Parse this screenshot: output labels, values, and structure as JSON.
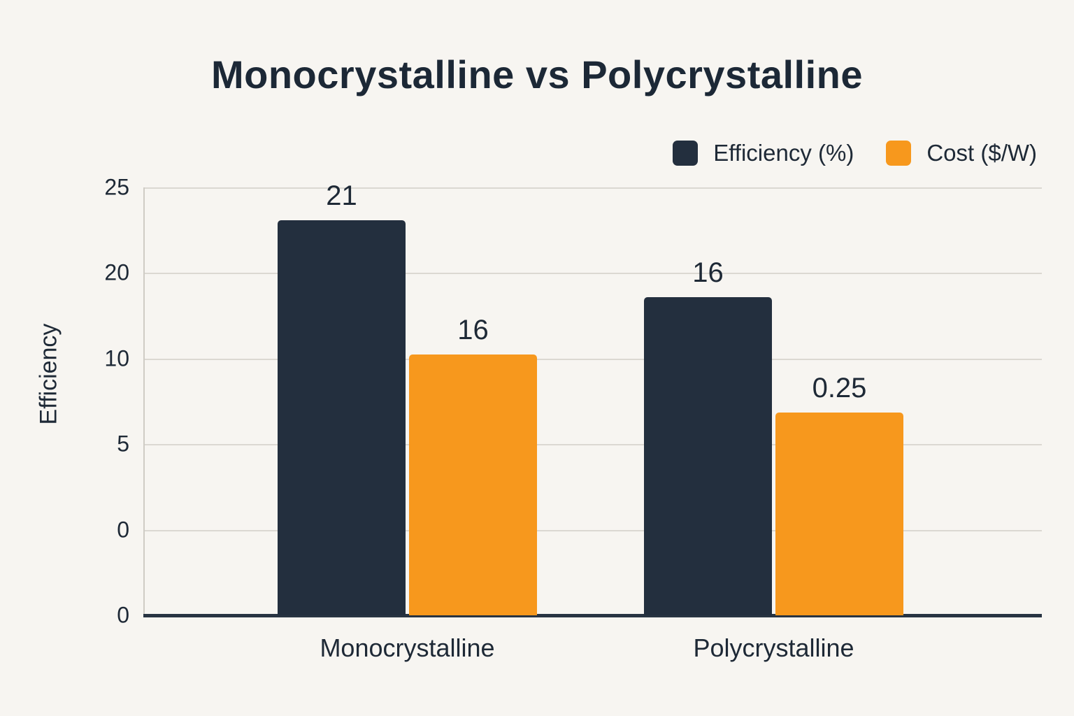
{
  "chart_data": {
    "type": "bar",
    "title": "Monocrystalline vs Polycrystalline",
    "ylabel": "Efficiency",
    "xlabel": "",
    "categories": [
      "Monocrystalline",
      "Polycrystalline"
    ],
    "series": [
      {
        "name": "Efficiency (%)",
        "color": "#232F3E",
        "values": [
          21,
          16
        ],
        "value_labels": [
          "21",
          "16"
        ],
        "display_fractions": [
          0.923,
          0.743
        ]
      },
      {
        "name": "Cost ($/W)",
        "color": "#F7981D",
        "values": [
          16,
          0.25
        ],
        "value_labels": [
          "16",
          "0.25"
        ],
        "display_fractions": [
          0.609,
          0.474
        ]
      }
    ],
    "y_ticks": [
      "25",
      "20",
      "10",
      "5",
      "0",
      "0"
    ],
    "grid": true,
    "legend_position": "top-right",
    "background": "#F7F5F2"
  }
}
